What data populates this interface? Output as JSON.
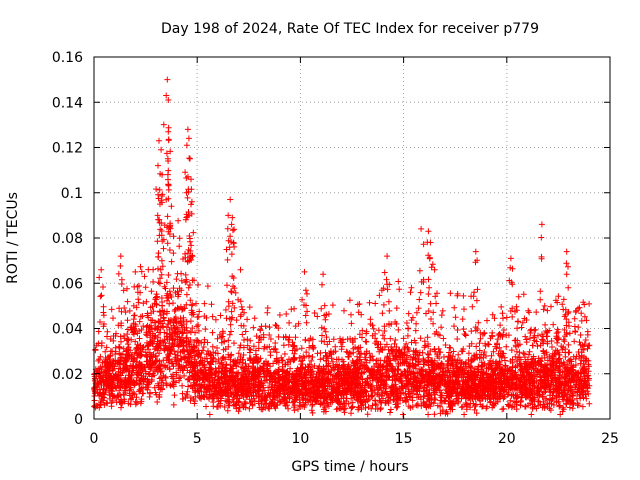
{
  "chart_data": {
    "type": "scatter",
    "title": "Day 198 of 2024, Rate Of TEC Index for receiver p779",
    "xlabel": "GPS time / hours",
    "ylabel": "ROTI / TECUs",
    "xlim": [
      0,
      25
    ],
    "ylim": [
      0,
      0.16
    ],
    "x_ticks": [
      0,
      5,
      10,
      15,
      20,
      25
    ],
    "x_tick_labels": [
      "0",
      "5",
      "10",
      "15",
      "20",
      "25"
    ],
    "y_ticks": [
      0,
      0.02,
      0.04,
      0.06,
      0.08,
      0.1,
      0.12,
      0.14,
      0.16
    ],
    "y_tick_labels": [
      "0",
      "0.02",
      "0.04",
      "0.06",
      "0.08",
      "0.1",
      "0.12",
      "0.14",
      "0.16"
    ],
    "grid": true,
    "marker": "+",
    "marker_color": "#ff0000",
    "series": [
      {
        "name": "ROTI",
        "note": "dense cloud of ~ 8000 points, approximated by the envelope below",
        "envelope": [
          {
            "x": 0.0,
            "low": 0.005,
            "base": 0.015,
            "high": 0.032
          },
          {
            "x": 1.0,
            "low": 0.005,
            "base": 0.018,
            "high": 0.04
          },
          {
            "x": 2.0,
            "low": 0.006,
            "base": 0.022,
            "high": 0.048
          },
          {
            "x": 3.0,
            "low": 0.008,
            "base": 0.028,
            "high": 0.06
          },
          {
            "x": 3.5,
            "low": 0.01,
            "base": 0.032,
            "high": 0.065
          },
          {
            "x": 4.0,
            "low": 0.008,
            "base": 0.03,
            "high": 0.068
          },
          {
            "x": 4.5,
            "low": 0.008,
            "base": 0.03,
            "high": 0.065
          },
          {
            "x": 5.0,
            "low": 0.006,
            "base": 0.022,
            "high": 0.05
          },
          {
            "x": 6.0,
            "low": 0.004,
            "base": 0.016,
            "high": 0.04
          },
          {
            "x": 8.0,
            "low": 0.004,
            "base": 0.016,
            "high": 0.038
          },
          {
            "x": 10.0,
            "low": 0.004,
            "base": 0.015,
            "high": 0.036
          },
          {
            "x": 12.0,
            "low": 0.004,
            "base": 0.016,
            "high": 0.038
          },
          {
            "x": 14.0,
            "low": 0.004,
            "base": 0.018,
            "high": 0.045
          },
          {
            "x": 16.0,
            "low": 0.004,
            "base": 0.018,
            "high": 0.045
          },
          {
            "x": 18.0,
            "low": 0.004,
            "base": 0.016,
            "high": 0.04
          },
          {
            "x": 20.0,
            "low": 0.004,
            "base": 0.016,
            "high": 0.04
          },
          {
            "x": 22.0,
            "low": 0.004,
            "base": 0.017,
            "high": 0.042
          },
          {
            "x": 24.0,
            "low": 0.004,
            "base": 0.016,
            "high": 0.038
          }
        ],
        "peaks": [
          {
            "x": 3.55,
            "y": 0.15
          },
          {
            "x": 3.5,
            "y": 0.143
          },
          {
            "x": 3.6,
            "y": 0.141
          },
          {
            "x": 3.6,
            "y": 0.127
          },
          {
            "x": 3.15,
            "y": 0.123
          },
          {
            "x": 3.25,
            "y": 0.119
          },
          {
            "x": 3.1,
            "y": 0.112
          },
          {
            "x": 3.3,
            "y": 0.108
          },
          {
            "x": 4.55,
            "y": 0.128
          },
          {
            "x": 4.6,
            "y": 0.124
          },
          {
            "x": 4.5,
            "y": 0.121
          },
          {
            "x": 4.65,
            "y": 0.115
          },
          {
            "x": 4.7,
            "y": 0.106
          },
          {
            "x": 3.2,
            "y": 0.095
          },
          {
            "x": 3.75,
            "y": 0.094
          },
          {
            "x": 4.6,
            "y": 0.09
          },
          {
            "x": 6.6,
            "y": 0.097
          },
          {
            "x": 6.5,
            "y": 0.09
          },
          {
            "x": 6.7,
            "y": 0.089
          },
          {
            "x": 1.3,
            "y": 0.072
          },
          {
            "x": 0.35,
            "y": 0.066
          },
          {
            "x": 2.0,
            "y": 0.065
          },
          {
            "x": 6.75,
            "y": 0.078
          },
          {
            "x": 7.1,
            "y": 0.066
          },
          {
            "x": 10.2,
            "y": 0.065
          },
          {
            "x": 11.1,
            "y": 0.064
          },
          {
            "x": 14.2,
            "y": 0.072
          },
          {
            "x": 15.85,
            "y": 0.084
          },
          {
            "x": 16.2,
            "y": 0.083
          },
          {
            "x": 16.3,
            "y": 0.078
          },
          {
            "x": 16.5,
            "y": 0.066
          },
          {
            "x": 18.5,
            "y": 0.074
          },
          {
            "x": 20.2,
            "y": 0.071
          },
          {
            "x": 21.7,
            "y": 0.086
          },
          {
            "x": 22.9,
            "y": 0.074
          },
          {
            "x": 22.9,
            "y": 0.064
          }
        ]
      }
    ]
  }
}
